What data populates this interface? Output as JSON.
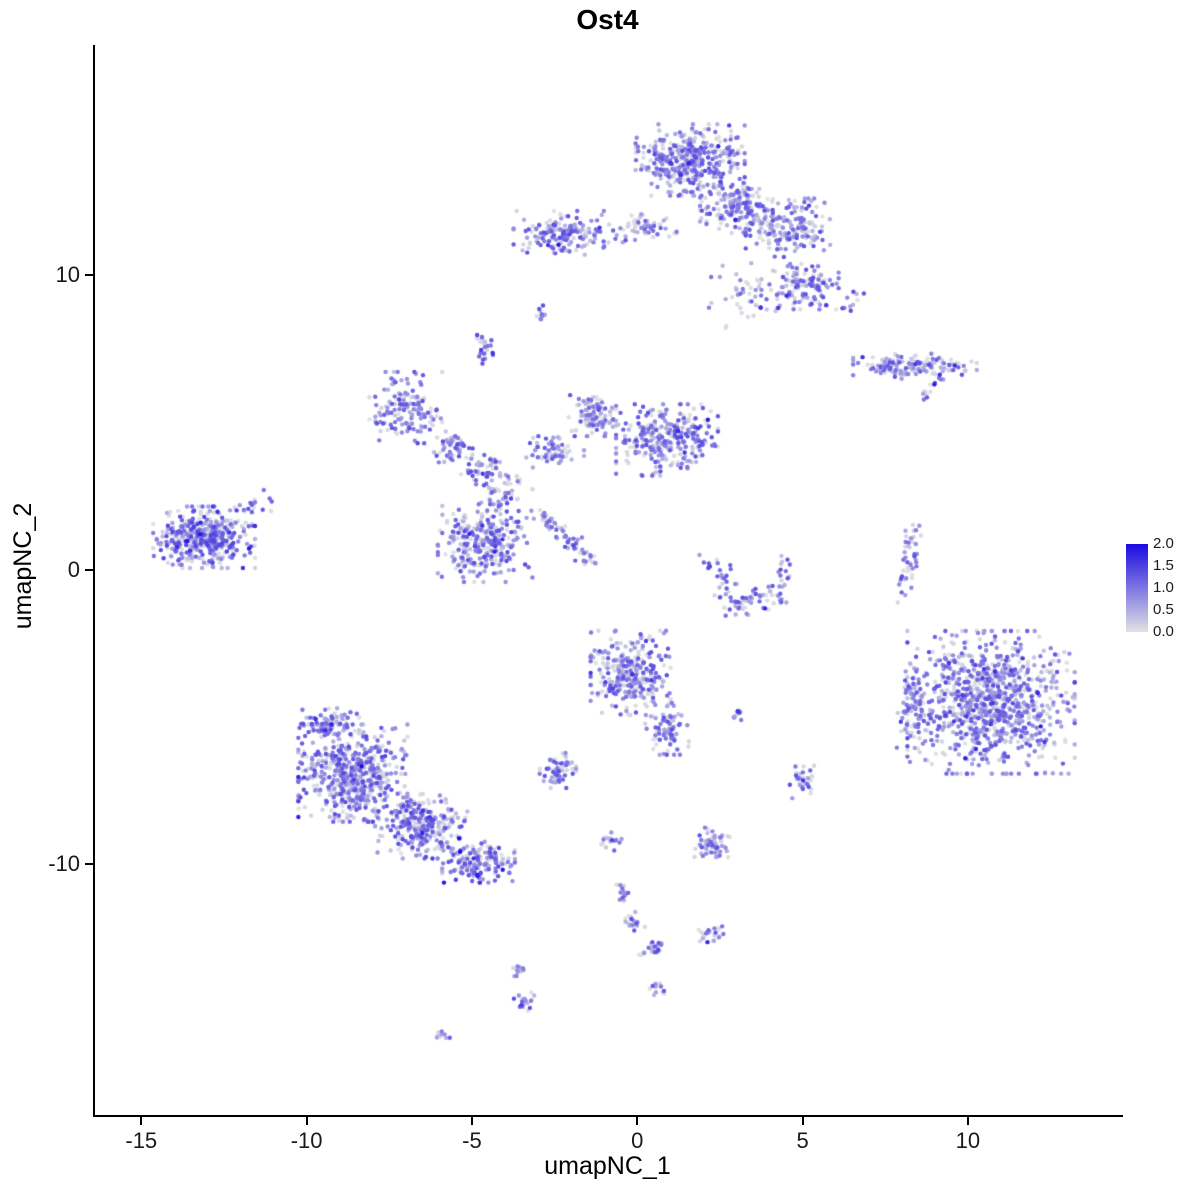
{
  "title": "Ost4",
  "chart_data": {
    "type": "scatter",
    "subtype": "umap-feature-plot",
    "title": "Ost4",
    "xlabel": "umapNC_1",
    "ylabel": "umapNC_2",
    "xlim": [
      -16.4,
      14.6
    ],
    "ylim": [
      -18.5,
      17.8
    ],
    "x_ticks": [
      -15,
      -10,
      -5,
      0,
      5,
      10
    ],
    "y_ticks": [
      -10,
      0,
      10
    ],
    "grid": false,
    "legend": {
      "position": "right",
      "ticks": [
        "2.0",
        "1.5",
        "1.0",
        "0.5",
        "0.0"
      ],
      "min": 0.0,
      "max": 2.0,
      "color_low": "#E2E2E2",
      "color_high": "#1B0AE1"
    },
    "point_radius_px": 2.2,
    "seed": 7,
    "expr_mix": {
      "p_zero": 0.3,
      "zero_max": 0.15,
      "base_min": 0.25,
      "base_range": 1.1,
      "p_high": 0.1,
      "high_boost": 0.6
    },
    "clusters": [
      {
        "id": "top-main",
        "type": "blob",
        "cx": 1.6,
        "cy": 13.9,
        "rx": 1.5,
        "ry": 1.1,
        "n": 420,
        "em": 1.0
      },
      {
        "id": "top-main-se",
        "type": "blob",
        "cx": 3.0,
        "cy": 12.3,
        "rx": 1.0,
        "ry": 0.8,
        "n": 150,
        "em": 1.0
      },
      {
        "id": "top-arm",
        "type": "blob",
        "cx": 4.6,
        "cy": 11.6,
        "rx": 1.2,
        "ry": 0.9,
        "n": 170,
        "em": 1.0
      },
      {
        "id": "top-arm-lower",
        "type": "blob",
        "cx": 5.1,
        "cy": 9.6,
        "rx": 0.9,
        "ry": 0.7,
        "n": 110,
        "em": 1.0
      },
      {
        "id": "top-sparse",
        "type": "blob",
        "cx": 3.6,
        "cy": 9.3,
        "rx": 1.3,
        "ry": 1.0,
        "n": 55,
        "em": 0.9
      },
      {
        "id": "top-left",
        "type": "blob",
        "cx": -2.2,
        "cy": 11.4,
        "rx": 1.4,
        "ry": 0.7,
        "n": 160,
        "em": 1.0
      },
      {
        "id": "top-left-bridge",
        "type": "blob",
        "cx": 0.2,
        "cy": 11.6,
        "rx": 0.9,
        "ry": 0.45,
        "n": 55,
        "em": 0.9
      },
      {
        "id": "tiny-upper-mid",
        "type": "blob",
        "cx": -2.9,
        "cy": 8.7,
        "rx": 0.18,
        "ry": 0.28,
        "n": 10,
        "em": 1.1
      },
      {
        "id": "small-upper-mid",
        "type": "blob",
        "cx": -4.6,
        "cy": 7.5,
        "rx": 0.25,
        "ry": 0.5,
        "n": 25,
        "em": 1.1
      },
      {
        "id": "right-band",
        "type": "blob",
        "cx": 8.4,
        "cy": 6.9,
        "rx": 1.7,
        "ry": 0.4,
        "n": 140,
        "em": 1.0
      },
      {
        "id": "right-band-tail",
        "type": "line",
        "x1": 8.6,
        "y1": 5.8,
        "x2": 9.2,
        "y2": 6.5,
        "jitter": 0.12,
        "n": 18,
        "em": 1.0
      },
      {
        "id": "mid-left-lobe",
        "type": "blob",
        "cx": -7.0,
        "cy": 5.5,
        "rx": 1.0,
        "ry": 1.1,
        "n": 150,
        "em": 1.0
      },
      {
        "id": "mid-left-bridge",
        "type": "blob",
        "cx": -5.6,
        "cy": 4.2,
        "rx": 0.6,
        "ry": 0.6,
        "n": 50,
        "em": 1.0
      },
      {
        "id": "mid-small",
        "type": "blob",
        "cx": -4.6,
        "cy": 3.4,
        "rx": 0.7,
        "ry": 0.6,
        "n": 60,
        "em": 1.0
      },
      {
        "id": "mid-right-lobe",
        "type": "blob",
        "cx": 0.9,
        "cy": 4.4,
        "rx": 1.4,
        "ry": 1.1,
        "n": 300,
        "em": 1.0
      },
      {
        "id": "mid-funnel",
        "type": "blob",
        "cx": -1.3,
        "cy": 5.3,
        "rx": 0.7,
        "ry": 0.7,
        "n": 90,
        "em": 1.0
      },
      {
        "id": "mid-bridge",
        "type": "blob",
        "cx": -2.6,
        "cy": 4.0,
        "rx": 0.9,
        "ry": 0.5,
        "n": 55,
        "em": 1.0
      },
      {
        "id": "mid-lower",
        "type": "blob",
        "cx": -4.6,
        "cy": 0.9,
        "rx": 1.3,
        "ry": 1.2,
        "n": 280,
        "em": 1.05
      },
      {
        "id": "mid-streak",
        "type": "line",
        "x1": -3.0,
        "y1": 1.9,
        "x2": -1.3,
        "y2": 0.2,
        "jitter": 0.13,
        "n": 70,
        "em": 1.0
      },
      {
        "id": "mid-neck",
        "type": "line",
        "x1": -3.6,
        "y1": 3.0,
        "x2": -4.4,
        "y2": 2.0,
        "jitter": 0.3,
        "n": 40,
        "em": 1.0
      },
      {
        "id": "left",
        "type": "blob",
        "cx": -13.1,
        "cy": 1.1,
        "rx": 1.4,
        "ry": 0.95,
        "n": 400,
        "em": 1.1
      },
      {
        "id": "left-tail",
        "type": "line",
        "x1": -11.9,
        "y1": 1.8,
        "x2": -11.2,
        "y2": 2.6,
        "jitter": 0.2,
        "n": 20,
        "em": 1.0
      },
      {
        "id": "crescent-left",
        "type": "line",
        "x1": 2.3,
        "y1": 0.3,
        "x2": 2.9,
        "y2": -1.2,
        "jitter": 0.22,
        "n": 35,
        "em": 1.0
      },
      {
        "id": "crescent-bottom",
        "type": "line",
        "x1": 2.9,
        "y1": -1.2,
        "x2": 4.2,
        "y2": -0.9,
        "jitter": 0.22,
        "n": 45,
        "em": 1.0
      },
      {
        "id": "crescent-right",
        "type": "line",
        "x1": 4.2,
        "y1": -0.9,
        "x2": 4.5,
        "y2": 0.4,
        "jitter": 0.18,
        "n": 22,
        "em": 1.0
      },
      {
        "id": "right-strip",
        "type": "line",
        "x1": 8.4,
        "y1": 1.6,
        "x2": 8.0,
        "y2": -0.9,
        "jitter": 0.14,
        "n": 48,
        "em": 1.1
      },
      {
        "id": "right-big",
        "type": "blob",
        "cx": 10.7,
        "cy": -4.5,
        "rx": 2.3,
        "ry": 2.2,
        "n": 950,
        "em": 1.0
      },
      {
        "id": "right-big-west",
        "type": "blob",
        "cx": 8.4,
        "cy": -4.7,
        "rx": 0.5,
        "ry": 1.5,
        "n": 90,
        "em": 0.9
      },
      {
        "id": "center-bottom",
        "type": "blob",
        "cx": -0.2,
        "cy": -3.5,
        "rx": 1.1,
        "ry": 1.3,
        "n": 290,
        "em": 1.0
      },
      {
        "id": "center-bottom-tail",
        "type": "blob",
        "cx": 0.9,
        "cy": -5.4,
        "rx": 0.6,
        "ry": 0.8,
        "n": 80,
        "em": 1.0
      },
      {
        "id": "tiny-center",
        "type": "blob",
        "cx": 3.1,
        "cy": -4.9,
        "rx": 0.22,
        "ry": 0.22,
        "n": 12,
        "em": 1.2
      },
      {
        "id": "small-mid-low",
        "type": "blob",
        "cx": -2.4,
        "cy": -6.8,
        "rx": 0.5,
        "ry": 0.55,
        "n": 55,
        "em": 1.0
      },
      {
        "id": "bottomleft-core",
        "type": "blob",
        "cx": -8.6,
        "cy": -6.9,
        "rx": 1.5,
        "ry": 1.5,
        "n": 560,
        "em": 1.05
      },
      {
        "id": "bottomleft-mid",
        "type": "blob",
        "cx": -6.5,
        "cy": -8.7,
        "rx": 1.3,
        "ry": 1.0,
        "n": 280,
        "em": 1.05
      },
      {
        "id": "bottomleft-tip",
        "type": "blob",
        "cx": -4.8,
        "cy": -9.9,
        "rx": 1.0,
        "ry": 0.65,
        "n": 160,
        "em": 1.05
      },
      {
        "id": "bottomleft-top",
        "type": "blob",
        "cx": -9.4,
        "cy": -5.2,
        "rx": 0.9,
        "ry": 0.5,
        "n": 90,
        "em": 1.0
      },
      {
        "id": "small-right-low",
        "type": "blob",
        "cx": 5.0,
        "cy": -7.2,
        "rx": 0.35,
        "ry": 0.5,
        "n": 30,
        "em": 1.0
      },
      {
        "id": "small-below-center",
        "type": "blob",
        "cx": 2.3,
        "cy": -9.3,
        "rx": 0.55,
        "ry": 0.5,
        "n": 60,
        "em": 1.0
      },
      {
        "id": "chain-1",
        "type": "blob",
        "cx": -0.8,
        "cy": -9.2,
        "rx": 0.3,
        "ry": 0.3,
        "n": 15,
        "em": 1.0
      },
      {
        "id": "chain-2",
        "type": "blob",
        "cx": -0.4,
        "cy": -10.9,
        "rx": 0.25,
        "ry": 0.3,
        "n": 12,
        "em": 1.0
      },
      {
        "id": "chain-3",
        "type": "blob",
        "cx": -0.1,
        "cy": -12.0,
        "rx": 0.3,
        "ry": 0.35,
        "n": 20,
        "em": 1.0
      },
      {
        "id": "chain-4",
        "type": "blob",
        "cx": 0.5,
        "cy": -12.9,
        "rx": 0.4,
        "ry": 0.3,
        "n": 25,
        "em": 1.0
      },
      {
        "id": "chain-5",
        "type": "blob",
        "cx": 2.2,
        "cy": -12.4,
        "rx": 0.45,
        "ry": 0.3,
        "n": 25,
        "em": 1.0
      },
      {
        "id": "bottom-pair-a",
        "type": "blob",
        "cx": -3.6,
        "cy": -13.6,
        "rx": 0.25,
        "ry": 0.3,
        "n": 14,
        "em": 1.0
      },
      {
        "id": "bottom-pair-b",
        "type": "blob",
        "cx": -3.4,
        "cy": -14.7,
        "rx": 0.3,
        "ry": 0.35,
        "n": 20,
        "em": 1.0
      },
      {
        "id": "tiny-bottom",
        "type": "blob",
        "cx": 0.6,
        "cy": -14.2,
        "rx": 0.2,
        "ry": 0.25,
        "n": 12,
        "em": 1.0
      },
      {
        "id": "tiny-bottom-left",
        "type": "blob",
        "cx": -5.9,
        "cy": -15.8,
        "rx": 0.35,
        "ry": 0.15,
        "n": 10,
        "em": 0.8
      },
      {
        "id": "stray-ne",
        "type": "blob",
        "cx": 6.6,
        "cy": 9.1,
        "rx": 0.5,
        "ry": 0.3,
        "n": 10,
        "em": 1.0
      }
    ]
  }
}
